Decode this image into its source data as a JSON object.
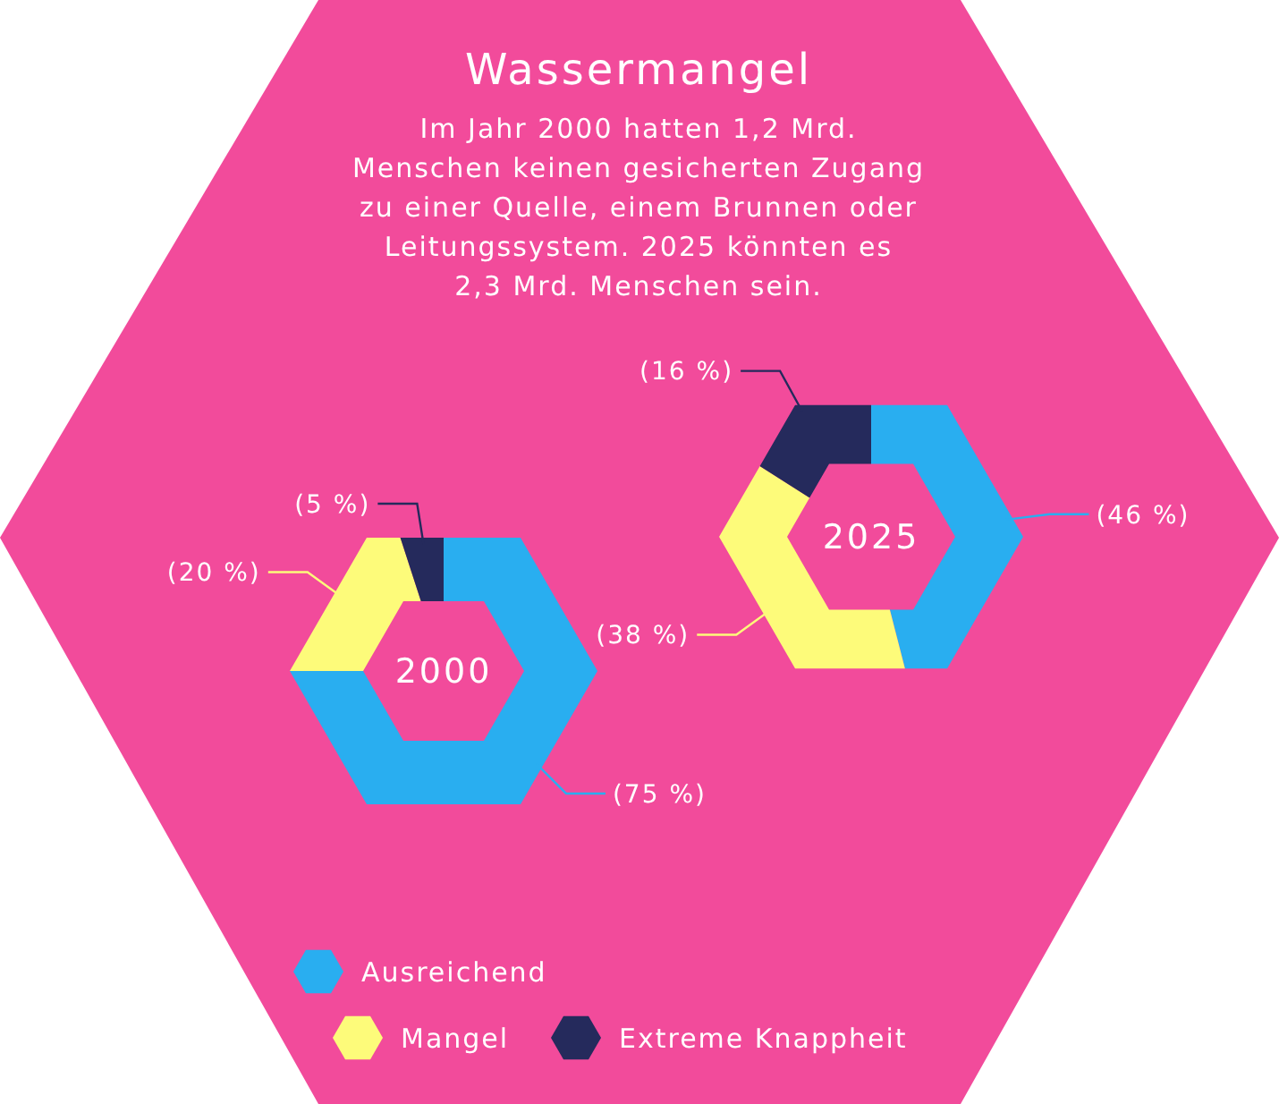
{
  "chart_data": [
    {
      "type": "donut",
      "title": "Wassermangel",
      "subtitle": "Im Jahr 2000 hatten 1,2 Mrd.\nMenschen keinen gesicherten Zugang\nzu einer Quelle, einem Brunnen oder\nLeitungssystem. 2025 könnten es\n2,3 Mrd. Menschen sein.",
      "categories": [
        "Ausreichend",
        "Mangel",
        "Extreme Knappheit"
      ],
      "values": [
        75,
        20,
        5
      ],
      "colors": [
        "#29aef0",
        "#fdfb7a",
        "#252a5c"
      ],
      "value_labels": [
        "(75 %)",
        "(20 %)",
        "(5 %)"
      ],
      "annotations": [
        "2000"
      ],
      "legend": "bottom"
    },
    {
      "type": "donut",
      "categories": [
        null,
        null,
        null
      ],
      "values": [
        46,
        38,
        16
      ],
      "colors": [
        "#29aef0",
        "#fdfb7a",
        "#252a5c"
      ],
      "value_labels": [
        "(46 %)",
        "(38 %)",
        "(16 %)"
      ],
      "annotations": [
        "2025"
      ]
    }
  ]
}
